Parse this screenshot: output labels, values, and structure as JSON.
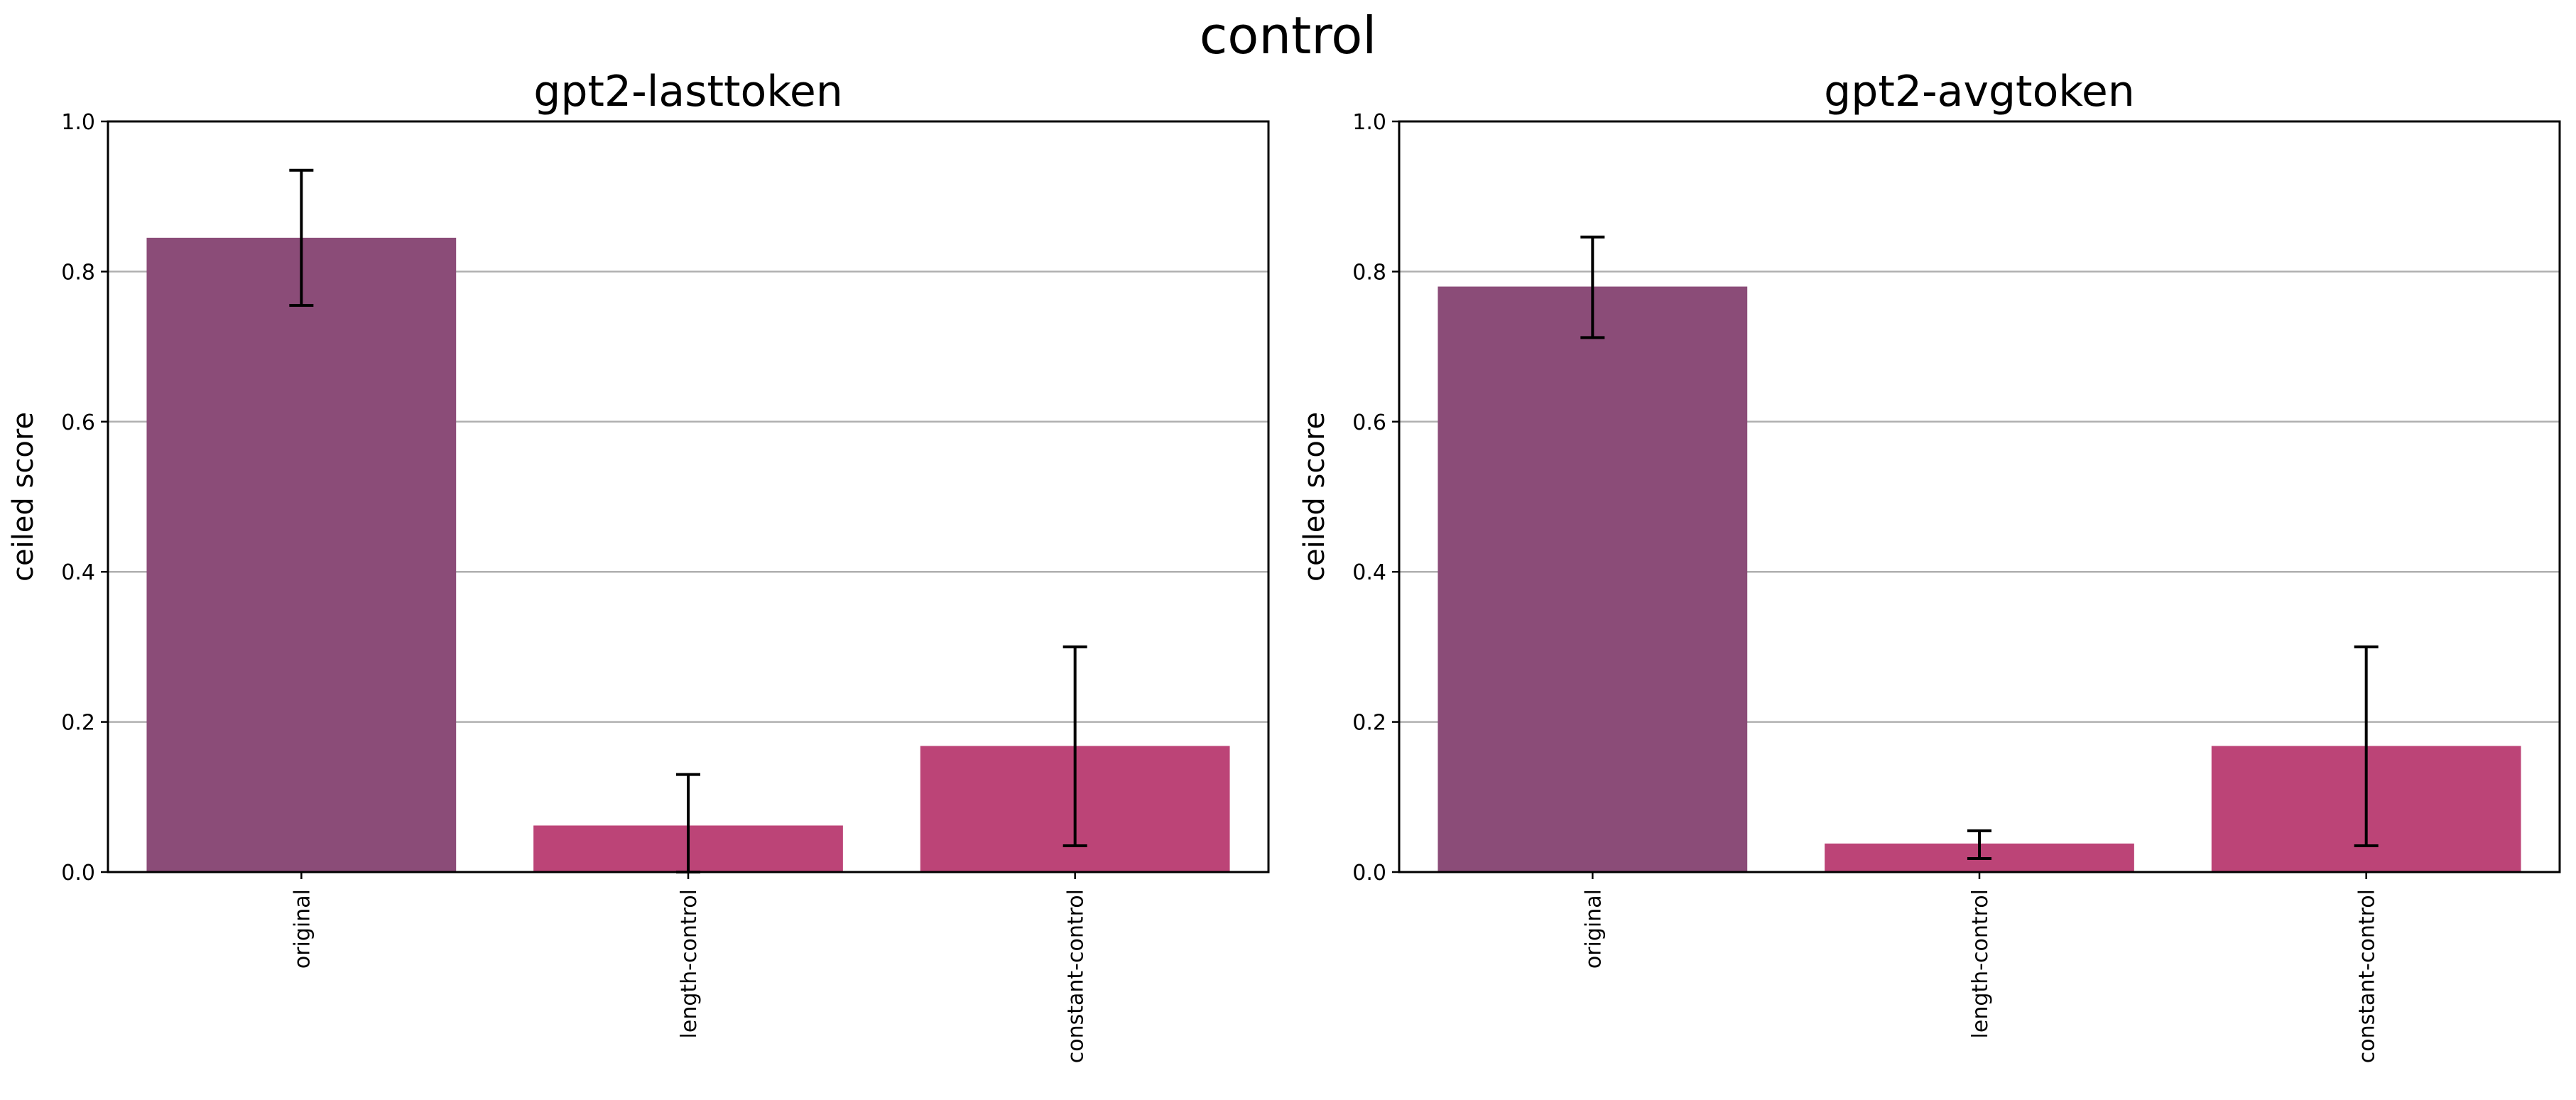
{
  "suptitle": "control",
  "colors": {
    "original": "#8b4c78",
    "control": "#bc4477",
    "grid": "#b0b0b0",
    "axis": "#000000",
    "errorbar": "#000000"
  },
  "chart_data": [
    {
      "type": "bar",
      "title": "gpt2-lasttoken",
      "ylabel": "ceiled score",
      "xlabel": "",
      "ylim": [
        0,
        1
      ],
      "yticks": [
        "0.0",
        "0.2",
        "0.4",
        "0.6",
        "0.8",
        "1.0"
      ],
      "grid": "y",
      "categories": [
        "original",
        "length-control",
        "constant-control"
      ],
      "values": [
        0.845,
        0.062,
        0.168
      ],
      "errors": [
        [
          0.755,
          0.935
        ],
        [
          0.0,
          0.13
        ],
        [
          0.035,
          0.3
        ]
      ]
    },
    {
      "type": "bar",
      "title": "gpt2-avgtoken",
      "ylabel": "ceiled score",
      "xlabel": "",
      "ylim": [
        0,
        1
      ],
      "yticks": [
        "0.0",
        "0.2",
        "0.4",
        "0.6",
        "0.8",
        "1.0"
      ],
      "grid": "y",
      "categories": [
        "original",
        "length-control",
        "constant-control"
      ],
      "values": [
        0.78,
        0.038,
        0.168
      ],
      "errors": [
        [
          0.712,
          0.846
        ],
        [
          0.018,
          0.055
        ],
        [
          0.035,
          0.3
        ]
      ]
    }
  ]
}
